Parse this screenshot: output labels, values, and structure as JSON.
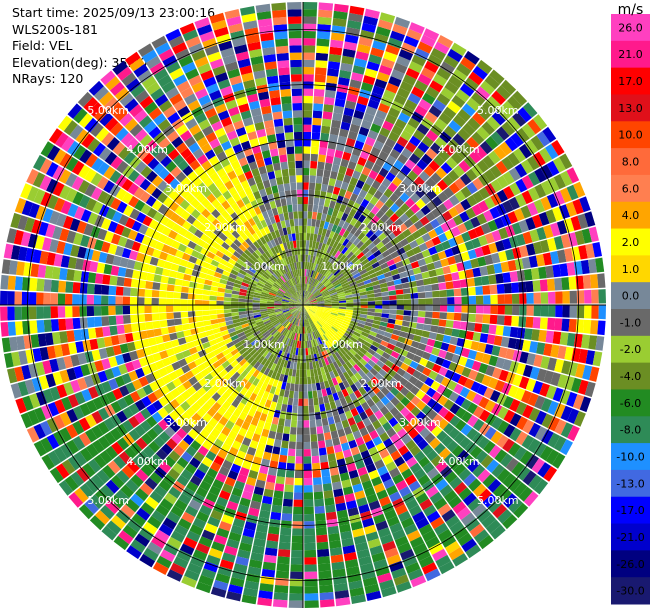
{
  "header": {
    "start_time": "Start time: 2025/09/13 23:00:16",
    "station": "WLS200s-181",
    "field": "Field: VEL",
    "elevation": "Elevation(deg): 35.00",
    "nrays": "NRays: 120"
  },
  "chart_data": {
    "type": "heatmap",
    "projection": "polar-ppi",
    "field": "VEL",
    "units": "m/s",
    "n_rays": 120,
    "range_rings": [
      {
        "value": 1.0,
        "label": "1.00km"
      },
      {
        "value": 2.0,
        "label": "2.00km"
      },
      {
        "value": 3.0,
        "label": "3.00km"
      },
      {
        "value": 4.0,
        "label": "4.00km"
      },
      {
        "value": 5.0,
        "label": "5.00km"
      }
    ],
    "max_range_km": 5.5,
    "colorbar": {
      "unit": "m/s",
      "ticks": [
        "26.0",
        "21.0",
        "17.0",
        "13.0",
        "10.0",
        "8.0",
        "6.0",
        "4.0",
        "2.0",
        "1.0",
        "0.0",
        "-1.0",
        "-2.0",
        "-4.0",
        "-6.0",
        "-8.0",
        "-10.0",
        "-13.0",
        "-17.0",
        "-21.0",
        "-26.0",
        "-30.0"
      ],
      "bins": [
        {
          "lo": 26,
          "hi": 30,
          "color": "#ff40c0"
        },
        {
          "lo": 21,
          "hi": 26,
          "color": "#ff1a8c"
        },
        {
          "lo": 17,
          "hi": 21,
          "color": "#ff0000"
        },
        {
          "lo": 13,
          "hi": 17,
          "color": "#e0101a"
        },
        {
          "lo": 10,
          "hi": 13,
          "color": "#ff4500"
        },
        {
          "lo": 8,
          "hi": 10,
          "color": "#ff6a3a"
        },
        {
          "lo": 6,
          "hi": 8,
          "color": "#ff7f50"
        },
        {
          "lo": 4,
          "hi": 6,
          "color": "#ffa500"
        },
        {
          "lo": 2,
          "hi": 4,
          "color": "#ffff00"
        },
        {
          "lo": 1,
          "hi": 2,
          "color": "#ffd700"
        },
        {
          "lo": 0,
          "hi": 1,
          "color": "#778899"
        },
        {
          "lo": -1,
          "hi": 0,
          "color": "#696969"
        },
        {
          "lo": -2,
          "hi": -1,
          "color": "#9acd32"
        },
        {
          "lo": -4,
          "hi": -2,
          "color": "#6b8e23"
        },
        {
          "lo": -6,
          "hi": -4,
          "color": "#228b22"
        },
        {
          "lo": -8,
          "hi": -6,
          "color": "#2e8b57"
        },
        {
          "lo": -10,
          "hi": -8,
          "color": "#1e90ff"
        },
        {
          "lo": -13,
          "hi": -10,
          "color": "#4169e1"
        },
        {
          "lo": -17,
          "hi": -13,
          "color": "#0000ff"
        },
        {
          "lo": -21,
          "hi": -17,
          "color": "#0000cd"
        },
        {
          "lo": -26,
          "hi": -21,
          "color": "#000080"
        },
        {
          "lo": -30,
          "hi": -26,
          "color": "#191970"
        }
      ]
    },
    "regions": [
      {
        "description": "near field 0-1.5 km, all azimuths",
        "dominant_velocity": -2.5
      },
      {
        "description": "south-east wedge 0-0.9 km",
        "dominant_velocity": 3.0
      },
      {
        "description": "west and south-west 1.5-3.2 km",
        "dominant_velocity": 3.0
      },
      {
        "description": "north-east 3.5-5.0 km",
        "dominant_velocity": -2.0
      },
      {
        "description": "south-west to south-east 3.5-5.5 km",
        "dominant_velocity": -5.0
      },
      {
        "description": "outer ranges elsewhere",
        "dominant_velocity": "noisy (-30 to 30)"
      }
    ]
  }
}
